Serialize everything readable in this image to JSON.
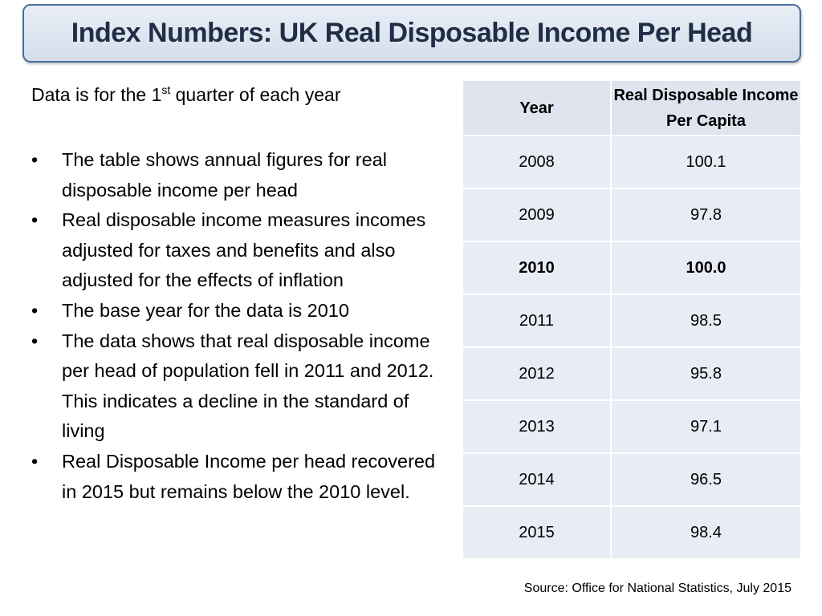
{
  "title": "Index Numbers: UK Real Disposable Income Per Head",
  "intro": {
    "prefix": "Data is for the 1",
    "sup": "st",
    "suffix": " quarter of each year"
  },
  "bullet_symbol": "•",
  "bullets": [
    "The table shows annual figures for real disposable income per head",
    "Real disposable income measures incomes adjusted for taxes and benefits and also adjusted for the effects of inflation",
    "The base year for the data is 2010",
    "The data shows that real disposable income per head of population fell in 2011 and 2012. This indicates a decline in the standard of living",
    "Real Disposable Income per head recovered in 2015 but remains below the 2010 level."
  ],
  "table": {
    "headers": [
      "Year",
      "Real Disposable Income Per Capita"
    ],
    "rows": [
      [
        "2008",
        "100.1"
      ],
      [
        "2009",
        "97.8"
      ],
      [
        "2010",
        "100.0"
      ],
      [
        "2011",
        "98.5"
      ],
      [
        "2012",
        "95.8"
      ],
      [
        "2013",
        "97.1"
      ],
      [
        "2014",
        "96.5"
      ],
      [
        "2015",
        "98.4"
      ]
    ],
    "bold_row": "2010"
  },
  "source": "Source: Office for National Statistics, July 2015",
  "colors": {
    "title_border": "#4a6e9c",
    "title_text": "#1f2d45",
    "table_cell": "#e9ecf4"
  }
}
